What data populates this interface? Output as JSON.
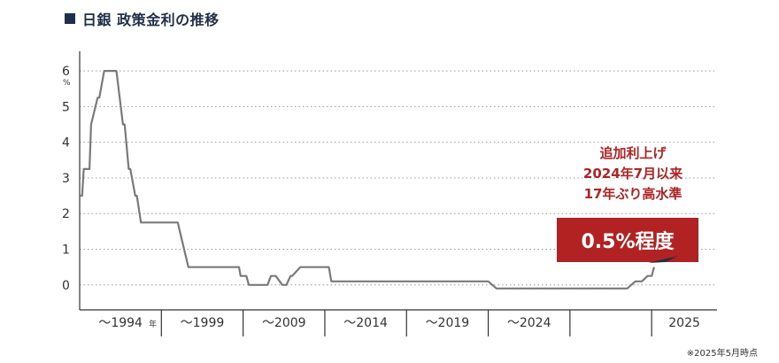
{
  "title": "日銀 政策金利の推移",
  "footnote": "※2025年5月時点",
  "colors": {
    "title": "#1f2f47",
    "line": "#7a7a7a",
    "callout": "#b22222",
    "annotation": "#b22222"
  },
  "annotation": {
    "lines": [
      "追加利上げ",
      "2024年7月以来",
      "17年ぶり高水準"
    ],
    "value_label": "0.5%程度"
  },
  "chart_data": {
    "type": "line",
    "title": "日銀 政策金利の推移",
    "y_unit_label": "%",
    "yticks": [
      "0",
      "1",
      "2",
      "3",
      "4",
      "5",
      "6"
    ],
    "ylim": [
      -0.7,
      6.3
    ],
    "grid": "horizontal dotted",
    "x_period_labels": [
      "〜1994",
      "年",
      "〜1999",
      "〜2009",
      "〜2014",
      "〜2019",
      "〜2024",
      "2025"
    ],
    "x_period_breaks": [
      1,
      2,
      3,
      4,
      5,
      6,
      7
    ],
    "xlim": [
      0,
      7.8
    ],
    "series": [
      {
        "x": [
          0.0,
          0.03,
          0.05,
          0.12,
          0.14,
          0.22,
          0.24,
          0.3,
          0.33,
          0.45,
          0.53,
          0.55,
          0.6,
          0.62,
          0.68,
          0.7,
          0.75,
          0.77,
          0.85,
          0.87,
          1.2,
          1.33,
          1.95,
          1.97,
          2.04,
          2.07,
          2.3,
          2.34,
          2.4,
          2.48,
          2.53,
          2.58,
          2.6,
          2.7,
          2.75,
          3.05,
          3.08,
          4.3,
          4.4,
          5.0,
          5.1,
          6.0,
          6.7,
          6.8,
          6.88,
          6.95,
          7.0,
          7.03
        ],
        "y": [
          2.5,
          2.5,
          3.25,
          3.25,
          4.5,
          5.25,
          5.25,
          6.0,
          6.0,
          6.0,
          4.5,
          4.5,
          3.25,
          3.25,
          2.5,
          2.5,
          1.75,
          1.75,
          1.75,
          1.75,
          1.75,
          0.5,
          0.5,
          0.25,
          0.25,
          0.0,
          0.0,
          0.25,
          0.25,
          0.0,
          0.0,
          0.25,
          0.25,
          0.5,
          0.5,
          0.5,
          0.1,
          0.1,
          0.1,
          0.1,
          -0.1,
          -0.1,
          -0.1,
          0.1,
          0.1,
          0.25,
          0.25,
          0.5
        ]
      }
    ]
  }
}
